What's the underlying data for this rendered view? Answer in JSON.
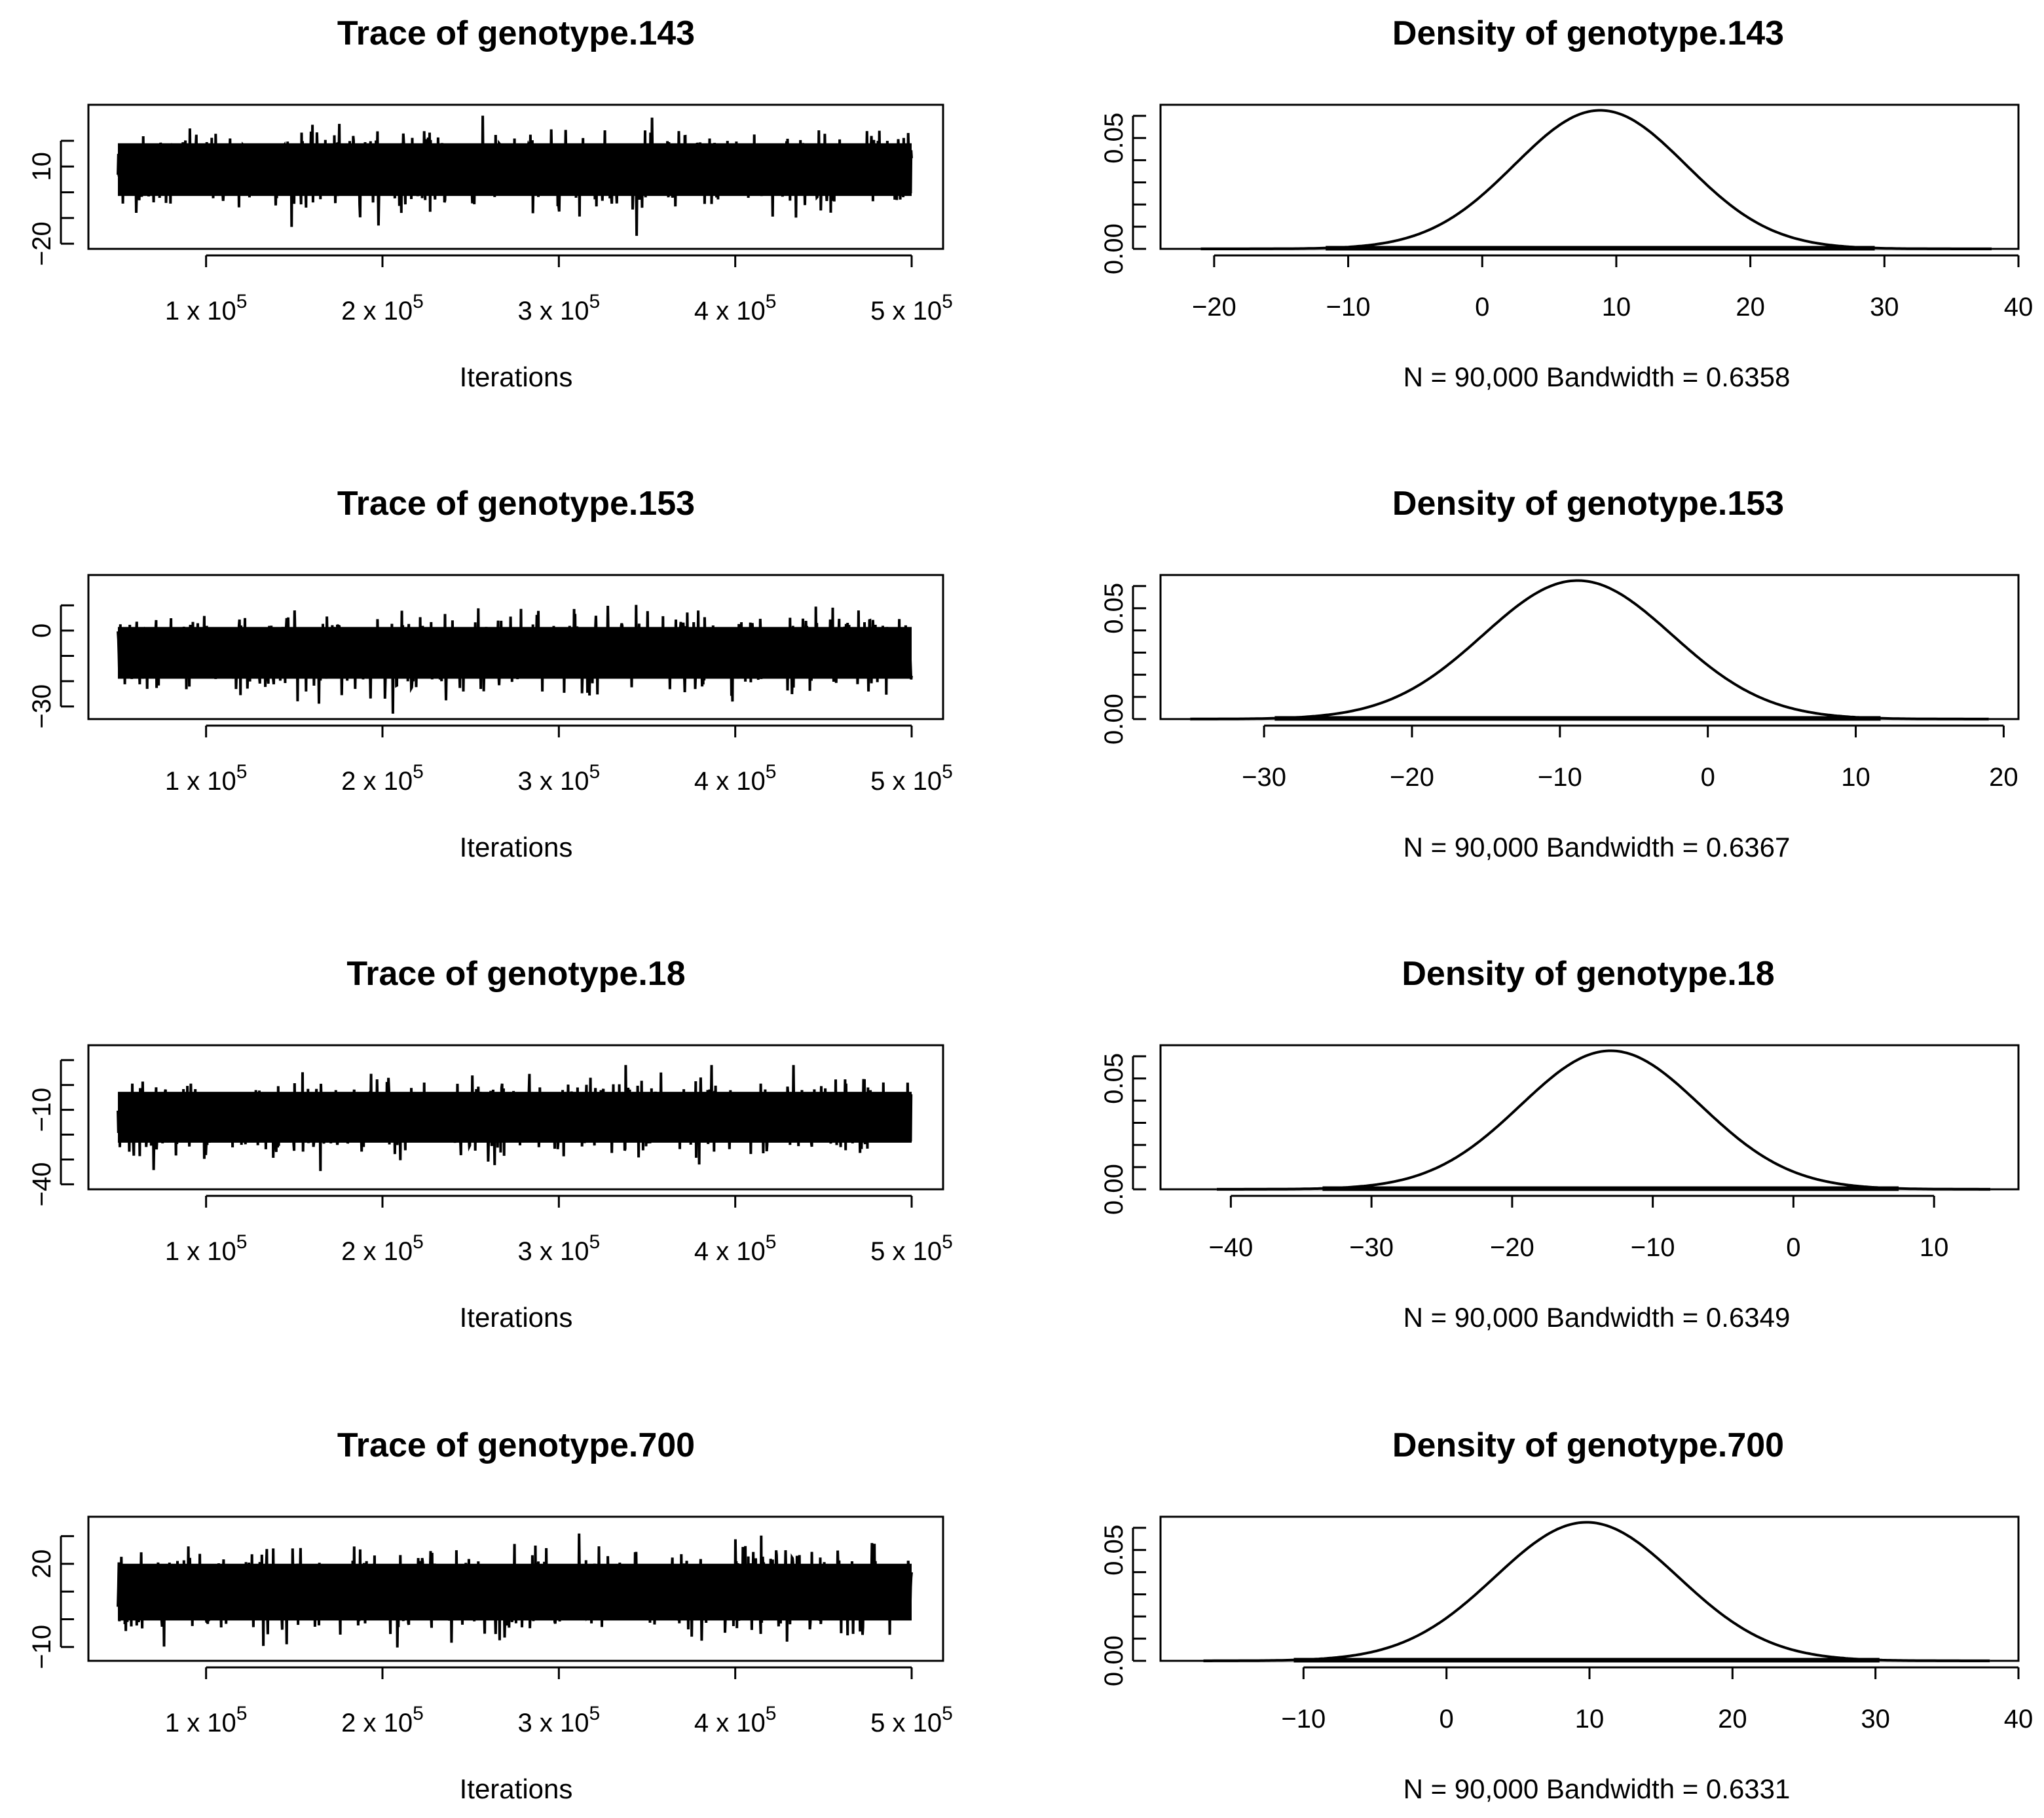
{
  "chart_data": [
    {
      "panel": "trace",
      "type": "line",
      "title": "Trace of genotype.143",
      "xlabel": "Iterations",
      "xlim": [
        50000,
        500000
      ],
      "x_ticks": [
        {
          "mantissa": "1 x 10",
          "exponent": "5",
          "value": 100000
        },
        {
          "mantissa": "2 x 10",
          "exponent": "5",
          "value": 200000
        },
        {
          "mantissa": "3 x 10",
          "exponent": "5",
          "value": 300000
        },
        {
          "mantissa": "4 x 10",
          "exponent": "5",
          "value": 400000
        },
        {
          "mantissa": "5 x 10",
          "exponent": "5",
          "value": 500000
        }
      ],
      "y_ticks": [
        -20,
        -10,
        0,
        10,
        20
      ],
      "y_tick_labels": [
        "−20",
        "10"
      ],
      "ylim": [
        -22,
        34
      ],
      "trace": {
        "mean": 8.8,
        "sd": 6.4,
        "min": -19,
        "max": 32
      }
    },
    {
      "panel": "density",
      "type": "line",
      "title": "Density of genotype.143",
      "xlabel": "N = 90,000 Bandwidth = 0.6358",
      "xlim": [
        -24,
        40
      ],
      "x_ticks": [
        -20,
        -10,
        0,
        10,
        20,
        30,
        40
      ],
      "x_tick_labels": [
        "−20",
        "−10",
        "0",
        "10",
        "20",
        "30",
        "40"
      ],
      "y_ticks": [
        0.0,
        0.01,
        0.02,
        0.03,
        0.04,
        0.05,
        0.06
      ],
      "y_tick_labels": [
        "0.00",
        "0.05"
      ],
      "ylim": [
        0,
        0.065
      ],
      "density": {
        "mean": 8.8,
        "sd": 6.4,
        "peak": 0.0625
      },
      "rug_range": [
        -21,
        38
      ]
    },
    {
      "panel": "trace",
      "type": "line",
      "title": "Trace of genotype.153",
      "xlabel": "Iterations",
      "xlim": [
        50000,
        500000
      ],
      "x_ticks": [
        {
          "mantissa": "1 x 10",
          "exponent": "5",
          "value": 100000
        },
        {
          "mantissa": "2 x 10",
          "exponent": "5",
          "value": 200000
        },
        {
          "mantissa": "3 x 10",
          "exponent": "5",
          "value": 300000
        },
        {
          "mantissa": "4 x 10",
          "exponent": "5",
          "value": 400000
        },
        {
          "mantissa": "5 x 10",
          "exponent": "5",
          "value": 500000
        }
      ],
      "y_ticks": [
        -30,
        -20,
        -10,
        0,
        10
      ],
      "y_tick_labels": [
        "−30",
        "0"
      ],
      "ylim": [
        -35,
        22
      ],
      "trace": {
        "mean": -8.8,
        "sd": 6.4,
        "min": -34,
        "max": 18
      }
    },
    {
      "panel": "density",
      "type": "line",
      "title": "Density of genotype.153",
      "xlabel": "N = 90,000 Bandwidth = 0.6367",
      "xlim": [
        -37,
        21
      ],
      "x_ticks": [
        -30,
        -20,
        -10,
        0,
        10,
        20
      ],
      "x_tick_labels": [
        "−30",
        "−20",
        "−10",
        "0",
        "10",
        "20"
      ],
      "y_ticks": [
        0.0,
        0.01,
        0.02,
        0.03,
        0.04,
        0.05,
        0.06
      ],
      "y_tick_labels": [
        "0.00",
        "0.05"
      ],
      "ylim": [
        0,
        0.065
      ],
      "density": {
        "mean": -8.8,
        "sd": 6.4,
        "peak": 0.0625
      },
      "rug_range": [
        -35,
        19
      ]
    },
    {
      "panel": "trace",
      "type": "line",
      "title": "Trace of genotype.18",
      "xlabel": "Iterations",
      "xlim": [
        50000,
        500000
      ],
      "x_ticks": [
        {
          "mantissa": "1 x 10",
          "exponent": "5",
          "value": 100000
        },
        {
          "mantissa": "2 x 10",
          "exponent": "5",
          "value": 200000
        },
        {
          "mantissa": "3 x 10",
          "exponent": "5",
          "value": 300000
        },
        {
          "mantissa": "4 x 10",
          "exponent": "5",
          "value": 400000
        },
        {
          "mantissa": "5 x 10",
          "exponent": "5",
          "value": 500000
        }
      ],
      "y_ticks": [
        -40,
        -30,
        -20,
        -10,
        0,
        10
      ],
      "y_tick_labels": [
        "−40",
        "−10"
      ],
      "ylim": [
        -42,
        16
      ],
      "trace": {
        "mean": -13,
        "sd": 6.4,
        "min": -40,
        "max": 8
      }
    },
    {
      "panel": "density",
      "type": "line",
      "title": "Density of genotype.18",
      "xlabel": "N = 90,000 Bandwidth = 0.6349",
      "xlim": [
        -45,
        16
      ],
      "x_ticks": [
        -40,
        -30,
        -20,
        -10,
        0,
        10
      ],
      "x_tick_labels": [
        "−40",
        "−30",
        "−20",
        "−10",
        "0",
        "10"
      ],
      "y_ticks": [
        0.0,
        0.01,
        0.02,
        0.03,
        0.04,
        0.05,
        0.06
      ],
      "y_tick_labels": [
        "0.00",
        "0.05"
      ],
      "ylim": [
        0,
        0.065
      ],
      "density": {
        "mean": -13,
        "sd": 6.4,
        "peak": 0.0625
      },
      "rug_range": [
        -41,
        14
      ]
    },
    {
      "panel": "trace",
      "type": "line",
      "title": "Trace of genotype.700",
      "xlabel": "Iterations",
      "xlim": [
        50000,
        500000
      ],
      "x_ticks": [
        {
          "mantissa": "1 x 10",
          "exponent": "5",
          "value": 100000
        },
        {
          "mantissa": "2 x 10",
          "exponent": "5",
          "value": 200000
        },
        {
          "mantissa": "3 x 10",
          "exponent": "5",
          "value": 300000
        },
        {
          "mantissa": "4 x 10",
          "exponent": "5",
          "value": 400000
        },
        {
          "mantissa": "5 x 10",
          "exponent": "5",
          "value": 500000
        }
      ],
      "y_ticks": [
        -10,
        0,
        10,
        20,
        30
      ],
      "y_tick_labels": [
        "−10",
        "20"
      ],
      "ylim": [
        -15,
        37
      ],
      "trace": {
        "mean": 9.8,
        "sd": 6.4,
        "min": -14,
        "max": 33
      }
    },
    {
      "panel": "density",
      "type": "line",
      "title": "Density of genotype.700",
      "xlabel": "N = 90,000 Bandwidth = 0.6331",
      "xlim": [
        -20,
        40
      ],
      "x_ticks": [
        -10,
        0,
        10,
        20,
        30,
        40
      ],
      "x_tick_labels": [
        "−10",
        "0",
        "10",
        "20",
        "30",
        "40"
      ],
      "y_ticks": [
        0.0,
        0.01,
        0.02,
        0.03,
        0.04,
        0.05,
        0.06
      ],
      "y_tick_labels": [
        "0.00",
        "0.05"
      ],
      "ylim": [
        0,
        0.065
      ],
      "density": {
        "mean": 9.8,
        "sd": 6.4,
        "peak": 0.0625
      },
      "rug_range": [
        -17,
        38
      ]
    }
  ]
}
